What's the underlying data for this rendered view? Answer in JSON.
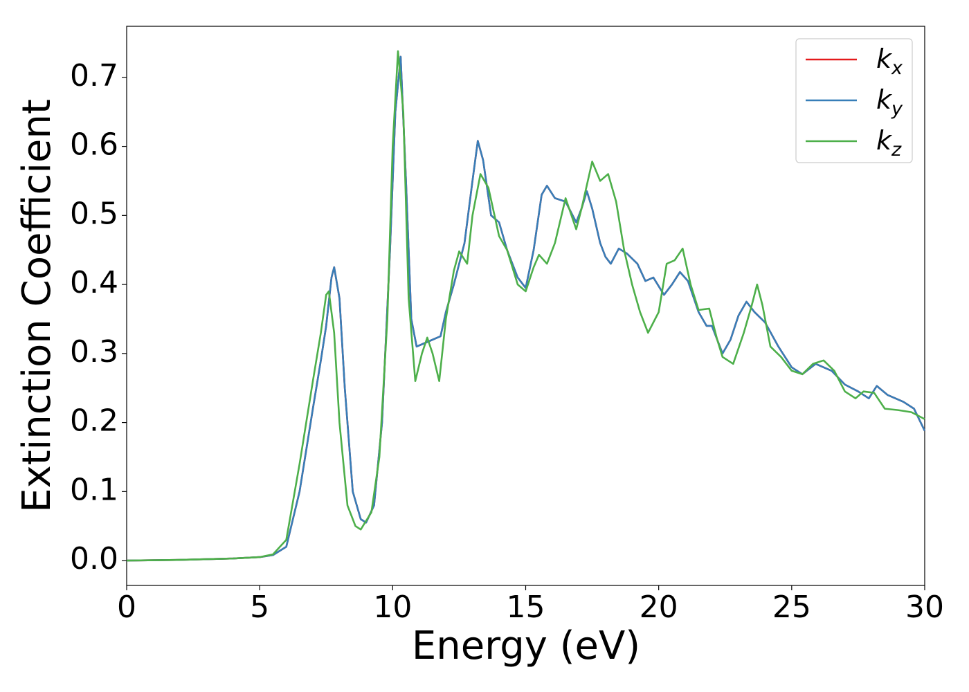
{
  "chart_data": {
    "type": "line",
    "xlabel": "Energy (eV)",
    "ylabel": "Extinction Coefficient",
    "xlim": [
      0,
      30
    ],
    "ylim": [
      -0.036,
      0.774
    ],
    "xticks": [
      0,
      5,
      10,
      15,
      20,
      25,
      30
    ],
    "yticks": [
      {
        "value": 0,
        "label": "0.0"
      },
      0.1,
      0.2,
      0.3,
      0.4,
      0.5,
      0.6,
      0.7
    ],
    "legend": "upper right",
    "series": [
      {
        "name": "kx",
        "color": "#e41a1c",
        "x": [
          0,
          2,
          4,
          5,
          5.5,
          6,
          6.5,
          7,
          7.3,
          7.5,
          7.7,
          7.8,
          8.0,
          8.2,
          8.5,
          8.8,
          9.0,
          9.3,
          9.6,
          9.9,
          10.1,
          10.3,
          10.5,
          10.7,
          10.9,
          11.2,
          11.5,
          11.8,
          12.0,
          12.3,
          12.7,
          13.0,
          13.2,
          13.4,
          13.7,
          14.0,
          14.3,
          14.7,
          15.0,
          15.3,
          15.6,
          15.8,
          16.1,
          16.5,
          16.9,
          17.1,
          17.3,
          17.5,
          17.8,
          18.0,
          18.2,
          18.5,
          18.8,
          19.2,
          19.5,
          19.8,
          20.2,
          20.5,
          20.8,
          21.1,
          21.5,
          21.8,
          22.0,
          22.4,
          22.7,
          23.0,
          23.3,
          23.6,
          24.0,
          24.5,
          25.0,
          25.4,
          25.9,
          26.5,
          27.0,
          27.5,
          27.9,
          28.2,
          28.6,
          29.2,
          29.6,
          30
        ],
        "values": [
          0,
          0.001,
          0.003,
          0.005,
          0.008,
          0.02,
          0.1,
          0.22,
          0.29,
          0.34,
          0.41,
          0.425,
          0.38,
          0.25,
          0.1,
          0.06,
          0.055,
          0.08,
          0.2,
          0.45,
          0.65,
          0.73,
          0.55,
          0.35,
          0.31,
          0.315,
          0.32,
          0.325,
          0.36,
          0.4,
          0.46,
          0.55,
          0.608,
          0.58,
          0.5,
          0.49,
          0.45,
          0.41,
          0.395,
          0.45,
          0.53,
          0.543,
          0.525,
          0.52,
          0.49,
          0.51,
          0.535,
          0.51,
          0.46,
          0.44,
          0.43,
          0.452,
          0.445,
          0.43,
          0.405,
          0.41,
          0.385,
          0.4,
          0.418,
          0.405,
          0.36,
          0.34,
          0.34,
          0.3,
          0.32,
          0.355,
          0.375,
          0.36,
          0.345,
          0.31,
          0.28,
          0.27,
          0.285,
          0.275,
          0.255,
          0.245,
          0.235,
          0.253,
          0.24,
          0.23,
          0.22,
          0.188
        ]
      },
      {
        "name": "ky",
        "color": "#377eb8",
        "x": [
          0,
          2,
          4,
          5,
          5.5,
          6,
          6.5,
          7,
          7.3,
          7.5,
          7.7,
          7.8,
          8.0,
          8.2,
          8.5,
          8.8,
          9.0,
          9.3,
          9.6,
          9.9,
          10.1,
          10.3,
          10.5,
          10.7,
          10.9,
          11.2,
          11.5,
          11.8,
          12.0,
          12.3,
          12.7,
          13.0,
          13.2,
          13.4,
          13.7,
          14.0,
          14.3,
          14.7,
          15.0,
          15.3,
          15.6,
          15.8,
          16.1,
          16.5,
          16.9,
          17.1,
          17.3,
          17.5,
          17.8,
          18.0,
          18.2,
          18.5,
          18.8,
          19.2,
          19.5,
          19.8,
          20.2,
          20.5,
          20.8,
          21.1,
          21.5,
          21.8,
          22.0,
          22.4,
          22.7,
          23.0,
          23.3,
          23.6,
          24.0,
          24.5,
          25.0,
          25.4,
          25.9,
          26.5,
          27.0,
          27.5,
          27.9,
          28.2,
          28.6,
          29.2,
          29.6,
          30
        ],
        "values": [
          0,
          0.001,
          0.003,
          0.005,
          0.008,
          0.02,
          0.1,
          0.22,
          0.29,
          0.34,
          0.41,
          0.425,
          0.38,
          0.25,
          0.1,
          0.06,
          0.055,
          0.08,
          0.2,
          0.45,
          0.65,
          0.73,
          0.55,
          0.35,
          0.31,
          0.315,
          0.32,
          0.325,
          0.36,
          0.4,
          0.46,
          0.55,
          0.608,
          0.58,
          0.5,
          0.49,
          0.45,
          0.41,
          0.395,
          0.45,
          0.53,
          0.543,
          0.525,
          0.52,
          0.49,
          0.51,
          0.535,
          0.51,
          0.46,
          0.44,
          0.43,
          0.452,
          0.445,
          0.43,
          0.405,
          0.41,
          0.385,
          0.4,
          0.418,
          0.405,
          0.36,
          0.34,
          0.34,
          0.3,
          0.32,
          0.355,
          0.375,
          0.36,
          0.345,
          0.31,
          0.28,
          0.27,
          0.285,
          0.275,
          0.255,
          0.245,
          0.235,
          0.253,
          0.24,
          0.23,
          0.22,
          0.188
        ]
      },
      {
        "name": "kz",
        "color": "#4daf4a",
        "x": [
          0,
          2,
          4,
          5,
          5.5,
          6,
          6.5,
          7.0,
          7.3,
          7.5,
          7.6,
          7.8,
          8.0,
          8.3,
          8.6,
          8.8,
          9.2,
          9.5,
          9.8,
          10.0,
          10.2,
          10.4,
          10.6,
          10.85,
          11.1,
          11.3,
          11.5,
          11.75,
          12.0,
          12.3,
          12.5,
          12.8,
          13.0,
          13.3,
          13.6,
          14.0,
          14.3,
          14.7,
          15.0,
          15.3,
          15.5,
          15.8,
          16.1,
          16.5,
          16.9,
          17.1,
          17.5,
          17.8,
          18.1,
          18.4,
          18.7,
          19.0,
          19.3,
          19.6,
          20.0,
          20.3,
          20.6,
          20.9,
          21.2,
          21.5,
          21.9,
          22.2,
          22.4,
          22.8,
          23.2,
          23.5,
          23.7,
          23.9,
          24.2,
          24.6,
          25.0,
          25.4,
          25.8,
          26.2,
          26.6,
          27.0,
          27.4,
          27.7,
          28.1,
          28.5,
          29.0,
          29.5,
          30
        ],
        "values": [
          0,
          0.001,
          0.003,
          0.005,
          0.009,
          0.03,
          0.14,
          0.26,
          0.33,
          0.385,
          0.39,
          0.33,
          0.2,
          0.08,
          0.05,
          0.045,
          0.07,
          0.15,
          0.35,
          0.6,
          0.738,
          0.65,
          0.38,
          0.26,
          0.3,
          0.323,
          0.3,
          0.26,
          0.35,
          0.42,
          0.448,
          0.43,
          0.5,
          0.56,
          0.54,
          0.47,
          0.45,
          0.4,
          0.39,
          0.425,
          0.443,
          0.43,
          0.46,
          0.525,
          0.48,
          0.51,
          0.578,
          0.55,
          0.56,
          0.52,
          0.45,
          0.4,
          0.36,
          0.33,
          0.36,
          0.43,
          0.435,
          0.452,
          0.4,
          0.363,
          0.365,
          0.32,
          0.295,
          0.285,
          0.33,
          0.37,
          0.4,
          0.37,
          0.31,
          0.295,
          0.275,
          0.27,
          0.285,
          0.29,
          0.275,
          0.245,
          0.235,
          0.245,
          0.243,
          0.22,
          0.218,
          0.215,
          0.205
        ]
      }
    ]
  }
}
